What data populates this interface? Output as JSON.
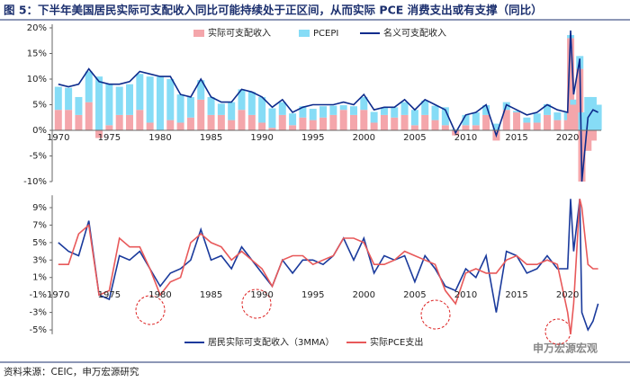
{
  "title": "图 5：下半年美国居民实际可支配收入同比可能持续处于正区间，从而实际 PCE 消费支出或有支撑（同比）",
  "source": "资料来源：CEIC，申万宏源研究",
  "watermark": "申万宏源宏观",
  "chart_data": [
    {
      "type": "combo",
      "x": [
        1970,
        1971,
        1972,
        1973,
        1974,
        1975,
        1976,
        1977,
        1978,
        1979,
        1980,
        1981,
        1982,
        1983,
        1984,
        1985,
        1986,
        1987,
        1988,
        1989,
        1990,
        1991,
        1992,
        1993,
        1994,
        1995,
        1996,
        1997,
        1998,
        1999,
        2000,
        2001,
        2002,
        2003,
        2004,
        2005,
        2006,
        2007,
        2008,
        2009,
        2010,
        2011,
        2012,
        2013,
        2014,
        2015,
        2016,
        2017,
        2018,
        2019,
        2020,
        2020.3,
        2020.6,
        2021.2,
        2021.4,
        2022,
        2022.5,
        2023
      ],
      "series": [
        {
          "name": "实际可支配收入",
          "type": "bar",
          "color": "#f4a6ab",
          "values": [
            4,
            4,
            3,
            5.5,
            -1.5,
            1,
            3,
            3,
            4,
            1.5,
            0,
            2,
            1.5,
            2.5,
            6,
            3,
            3,
            2,
            4,
            3,
            1.5,
            0.5,
            3,
            1,
            2.5,
            2,
            2.5,
            3,
            4,
            3,
            4,
            1.5,
            3,
            2.5,
            3,
            1,
            3,
            2,
            1,
            -1,
            1,
            1,
            3,
            -2,
            4,
            3.5,
            1.5,
            1.5,
            3,
            2,
            2,
            18,
            5,
            12,
            -10,
            -4,
            -2,
            0
          ]
        },
        {
          "name": "PCEPI",
          "type": "bar",
          "color": "#86dcf6",
          "values": [
            4.5,
            4.3,
            3.5,
            6,
            10.5,
            8,
            5.5,
            6,
            7,
            9,
            10.5,
            8,
            5.5,
            4,
            3.8,
            3.5,
            2.2,
            3.5,
            4,
            4.5,
            5,
            3.8,
            2.5,
            2.3,
            2.2,
            2.2,
            2.2,
            1.8,
            0.9,
            1.7,
            2.5,
            2.1,
            1.4,
            2,
            2.5,
            3,
            2.8,
            2.8,
            3.5,
            0.2,
            2,
            2.5,
            1.9,
            1.3,
            1.5,
            0.3,
            1,
            1.8,
            2.1,
            1.5,
            1.5,
            0.6,
            1,
            2.5,
            3.5,
            6.5,
            6.5,
            5
          ]
        },
        {
          "name": "名义可支配收入",
          "type": "line",
          "color": "#0d2b8c",
          "values": [
            9,
            8.5,
            9,
            12,
            9.5,
            9,
            9,
            9.5,
            11.5,
            11,
            10.5,
            10.5,
            7,
            6.5,
            10,
            6.5,
            5.5,
            5.5,
            8,
            7.5,
            6.5,
            4.5,
            6,
            3.5,
            4.5,
            5,
            5,
            5,
            5.5,
            5,
            7,
            4,
            4.5,
            4.5,
            6,
            4,
            6,
            5,
            4,
            -0.5,
            3,
            3.5,
            5,
            -1,
            5,
            4,
            3,
            3.5,
            5,
            4,
            3.5,
            19.5,
            7,
            14,
            -10,
            2.5,
            4,
            3.5
          ]
        }
      ],
      "xlim": [
        1969.4,
        2023.3
      ],
      "xticks": [
        1970,
        1975,
        1980,
        1985,
        1990,
        1995,
        2000,
        2005,
        2010,
        2015,
        2020
      ],
      "ylim": [
        -10,
        20
      ],
      "yticks": [
        {
          "value": -10,
          "label": "-10%"
        },
        {
          "value": -5,
          "label": "-5%"
        },
        {
          "value": 0,
          "label": "0%"
        },
        {
          "value": 5,
          "label": "5%"
        },
        {
          "value": 10,
          "label": "10%"
        },
        {
          "value": 15,
          "label": "15%"
        },
        {
          "value": 20,
          "label": "20%"
        }
      ]
    },
    {
      "type": "line",
      "x": [
        1970,
        1971,
        1972,
        1973,
        1974,
        1975,
        1976,
        1977,
        1978,
        1979,
        1980,
        1981,
        1982,
        1983,
        1984,
        1985,
        1986,
        1987,
        1988,
        1989,
        1990,
        1991,
        1992,
        1993,
        1994,
        1995,
        1996,
        1997,
        1998,
        1999,
        2000,
        2001,
        2002,
        2003,
        2004,
        2005,
        2006,
        2007,
        2008,
        2009,
        2010,
        2011,
        2012,
        2013,
        2014,
        2015,
        2016,
        2017,
        2018,
        2019,
        2020,
        2020.3,
        2020.6,
        2021.2,
        2021.4,
        2022,
        2022.5,
        2023
      ],
      "series": [
        {
          "name": "居民实际可支配收入（3MMA）",
          "color": "#1a3a9c",
          "values": [
            5,
            4,
            3.5,
            7.5,
            -1,
            -1.5,
            3.5,
            3,
            4,
            2,
            0,
            1.5,
            2,
            3,
            6.5,
            3,
            3.5,
            2,
            4.5,
            3,
            1.5,
            0,
            3,
            1.5,
            3,
            3,
            2.5,
            3.5,
            5.5,
            3,
            5.5,
            1.5,
            3.5,
            3,
            3.5,
            0.5,
            3.5,
            2,
            0,
            -0.5,
            2,
            1,
            3.5,
            -3,
            4,
            3.5,
            1.5,
            2,
            3.5,
            2,
            2,
            10,
            4,
            10,
            -3,
            -5,
            -4,
            -2
          ]
        },
        {
          "name": "实际PCE支出",
          "color": "#e8595a",
          "values": [
            2.5,
            2.5,
            6,
            7,
            -1,
            -0.5,
            5.5,
            4.5,
            4.5,
            2,
            -1,
            0.5,
            1,
            5,
            6,
            5,
            4.5,
            3,
            4,
            3,
            2,
            0,
            3,
            3.5,
            3.5,
            2.5,
            3,
            3.5,
            5.5,
            5.5,
            5,
            2.5,
            2.5,
            3,
            4,
            3.5,
            3,
            2.5,
            -0.5,
            -2,
            1.5,
            2,
            1.5,
            1.5,
            3,
            3.5,
            2.5,
            2.5,
            3,
            2.5,
            -3,
            -5.5,
            -2,
            10,
            9,
            2.5,
            2,
            2
          ]
        }
      ],
      "xlim": [
        1969.4,
        2023.3
      ],
      "xticks": [
        1970,
        1975,
        1980,
        1985,
        1990,
        1995,
        2000,
        2005,
        2010,
        2015,
        2020
      ],
      "ylim": [
        -5.5,
        10
      ],
      "yticks": [
        {
          "value": -5,
          "label": "-5%"
        },
        {
          "value": -3,
          "label": "-3%"
        },
        {
          "value": -1,
          "label": "-1%"
        },
        {
          "value": 1,
          "label": "1%"
        },
        {
          "value": 3,
          "label": "3%"
        },
        {
          "value": 5,
          "label": "5%"
        },
        {
          "value": 7,
          "label": "7%"
        },
        {
          "value": 9,
          "label": "9%"
        }
      ]
    }
  ]
}
